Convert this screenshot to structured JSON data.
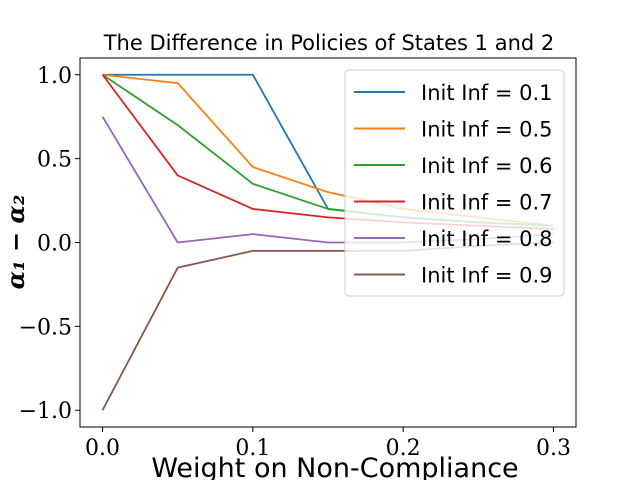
{
  "chart_data": {
    "type": "line",
    "title": "The Difference in Policies of States 1 and 2",
    "xlabel": "Weight on Non-Compliance",
    "ylabel": "α₁ − α₂",
    "xlim": [
      -0.015,
      0.315
    ],
    "ylim": [
      -1.1,
      1.1
    ],
    "xticks": [
      0.0,
      0.1,
      0.2,
      0.3
    ],
    "xtick_labels": [
      "0.0",
      "0.1",
      "0.2",
      "0.3"
    ],
    "yticks": [
      1.0,
      0.5,
      0.0,
      -0.5,
      -1.0
    ],
    "ytick_labels": [
      "1.0",
      "0.5",
      "0.0",
      "−0.5",
      "−1.0"
    ],
    "grid": false,
    "legend_position": "upper-right",
    "x": [
      0.0,
      0.05,
      0.1,
      0.15,
      0.2,
      0.25,
      0.3
    ],
    "series": [
      {
        "name": "Init Inf = 0.1",
        "color": "#1f77b4",
        "values": [
          1.0,
          1.0,
          1.0,
          0.2,
          0.15,
          0.12,
          0.1
        ]
      },
      {
        "name": "Init Inf = 0.5",
        "color": "#ff7f0e",
        "values": [
          1.0,
          0.95,
          0.45,
          0.3,
          0.2,
          0.15,
          0.1
        ]
      },
      {
        "name": "Init Inf = 0.6",
        "color": "#2ca02c",
        "values": [
          1.0,
          0.7,
          0.35,
          0.2,
          0.15,
          0.12,
          0.1
        ]
      },
      {
        "name": "Init Inf = 0.7",
        "color": "#d62728",
        "values": [
          1.0,
          0.4,
          0.2,
          0.15,
          0.12,
          0.1,
          0.08
        ]
      },
      {
        "name": "Init Inf = 0.8",
        "color": "#9467bd",
        "values": [
          0.75,
          0.0,
          0.05,
          0.0,
          0.0,
          0.02,
          0.05
        ]
      },
      {
        "name": "Init Inf = 0.9",
        "color": "#8c564b",
        "values": [
          -1.0,
          -0.15,
          -0.05,
          -0.05,
          -0.05,
          -0.02,
          0.0
        ]
      }
    ]
  }
}
